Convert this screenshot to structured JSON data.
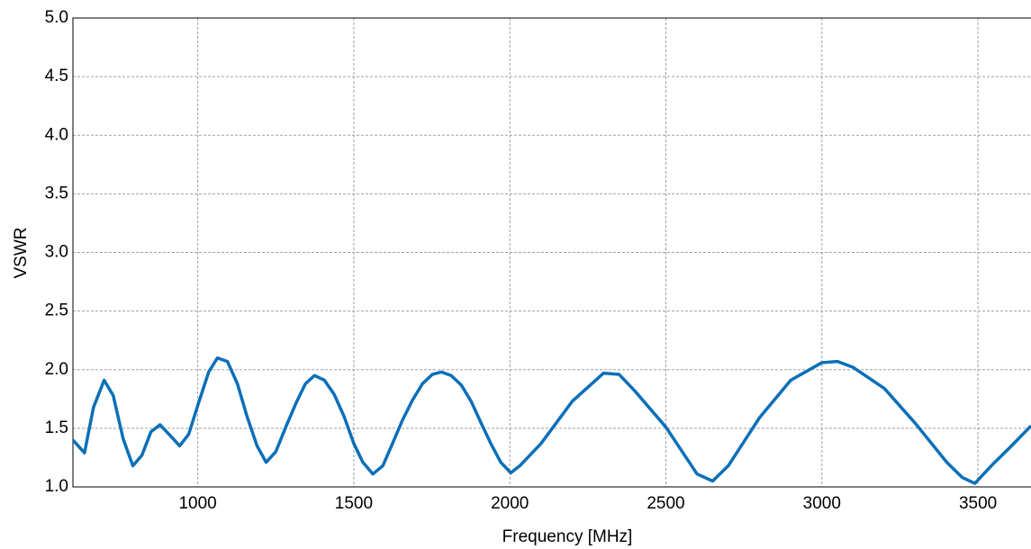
{
  "chart_data": {
    "type": "line",
    "x_label": "Frequency [MHz]",
    "y_label": "VSWR",
    "xlim": [
      600,
      3670
    ],
    "ylim": [
      1,
      5
    ],
    "xticks": [
      1000,
      1500,
      2000,
      2500,
      3000,
      3500
    ],
    "yticks": [
      {
        "value": 1,
        "label": "1.0"
      },
      1.5,
      {
        "value": 2,
        "label": "2.0"
      },
      2.5,
      {
        "value": 3,
        "label": "3.0"
      },
      3.5,
      {
        "value": 4,
        "label": "4.0"
      },
      4.5,
      {
        "value": 5,
        "label": "5.0"
      }
    ],
    "grid": true,
    "x": [
      600,
      637,
      666,
      700,
      729,
      761,
      792,
      821,
      850,
      879,
      911,
      942,
      971,
      1003,
      1035,
      1063,
      1095,
      1127,
      1158,
      1190,
      1219,
      1250,
      1282,
      1314,
      1345,
      1374,
      1406,
      1437,
      1469,
      1500,
      1529,
      1561,
      1593,
      1624,
      1656,
      1688,
      1720,
      1752,
      1781,
      1812,
      1844,
      1876,
      1907,
      1939,
      1971,
      2003,
      2032,
      2100,
      2200,
      2300,
      2350,
      2400,
      2500,
      2600,
      2650,
      2700,
      2800,
      2900,
      3000,
      3050,
      3100,
      3200,
      3300,
      3400,
      3450,
      3490,
      3550,
      3600,
      3670
    ],
    "series": [
      {
        "color": "#0b6fb8",
        "values": [
          1.4,
          1.29,
          1.68,
          1.91,
          1.78,
          1.41,
          1.18,
          1.27,
          1.47,
          1.53,
          1.44,
          1.35,
          1.45,
          1.72,
          1.98,
          2.1,
          2.07,
          1.88,
          1.6,
          1.35,
          1.21,
          1.3,
          1.51,
          1.71,
          1.88,
          1.95,
          1.91,
          1.79,
          1.6,
          1.37,
          1.21,
          1.11,
          1.18,
          1.37,
          1.57,
          1.74,
          1.88,
          1.96,
          1.98,
          1.95,
          1.87,
          1.73,
          1.55,
          1.37,
          1.21,
          1.12,
          1.18,
          1.37,
          1.73,
          1.97,
          1.96,
          1.82,
          1.51,
          1.11,
          1.05,
          1.18,
          1.59,
          1.91,
          2.06,
          2.07,
          2.02,
          1.84,
          1.54,
          1.21,
          1.08,
          1.03,
          1.2,
          1.33,
          1.52
        ]
      }
    ]
  }
}
